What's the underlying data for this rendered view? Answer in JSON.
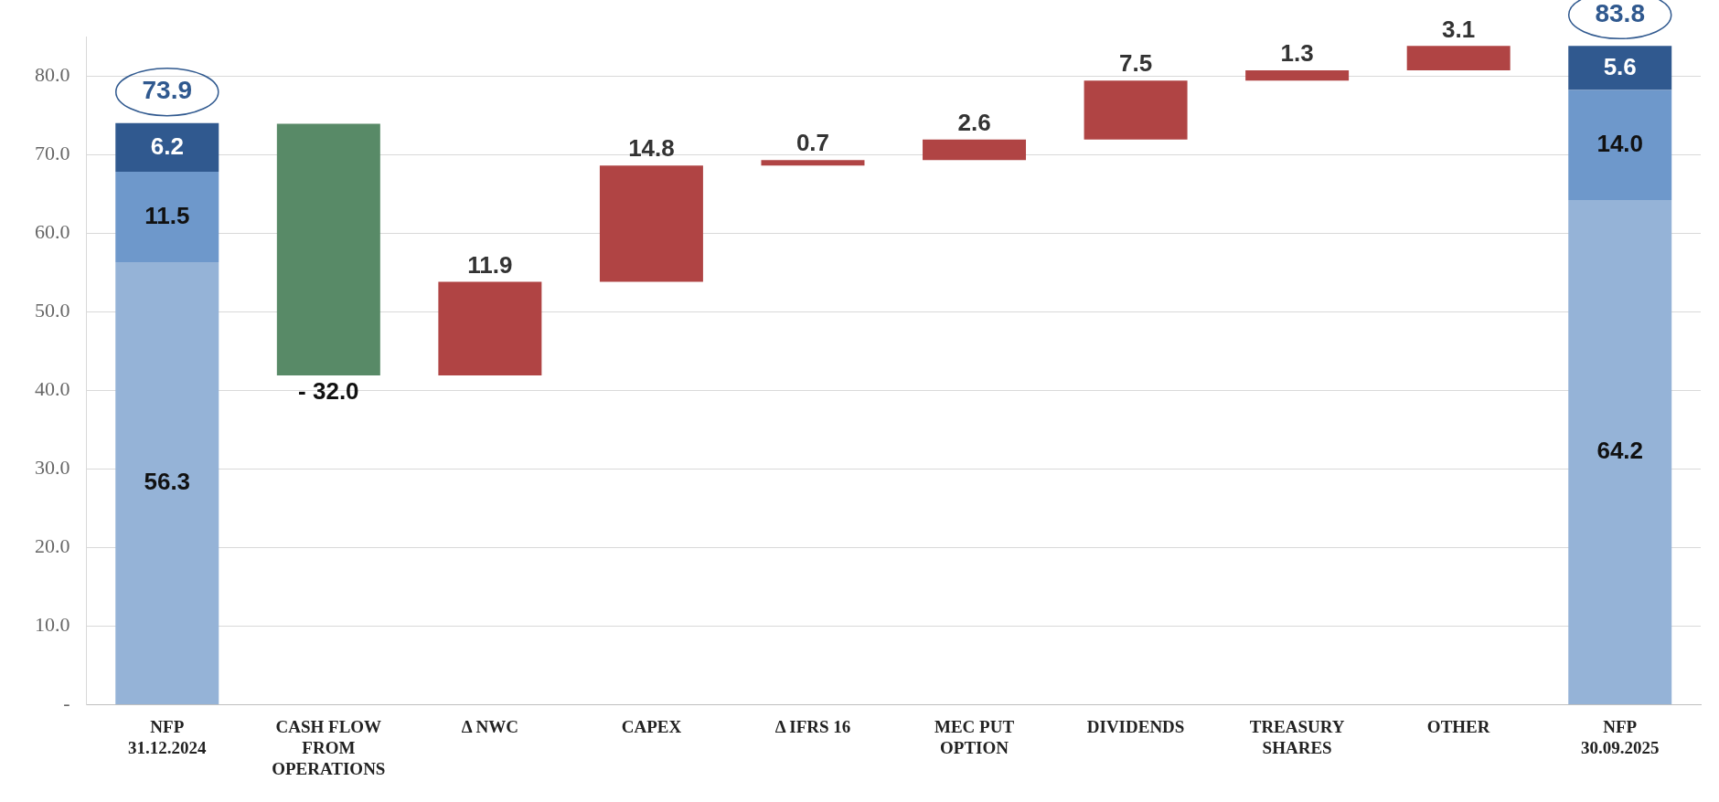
{
  "chart_data": {
    "type": "bar",
    "stacked": true,
    "categories": [
      "NFP 31.12.2024",
      "CASH FLOW FROM OPERATIONS",
      "Δ NWC",
      "CAPEX",
      "Δ IFRS 16",
      "MEC PUT OPTION",
      "DIVIDENDS",
      "TREASURY SHARES",
      "OTHER",
      "NFP 30.09.2025"
    ],
    "series": [
      {
        "color": "#95b3d7",
        "values": [
          56.3,
          null,
          null,
          null,
          null,
          null,
          null,
          null,
          null,
          64.2
        ],
        "value_labels": [
          "56.3",
          null,
          null,
          null,
          null,
          null,
          null,
          null,
          null,
          "64.2"
        ]
      },
      {
        "color": "#6e98cb",
        "values": [
          11.5,
          null,
          null,
          null,
          null,
          null,
          null,
          null,
          null,
          14.0
        ],
        "value_labels": [
          "11.5",
          null,
          null,
          null,
          null,
          null,
          null,
          null,
          null,
          "14.0"
        ]
      },
      {
        "color": "#30598f",
        "values": [
          6.2,
          null,
          null,
          null,
          null,
          null,
          null,
          null,
          null,
          5.6
        ],
        "value_labels": [
          "6.2",
          null,
          null,
          null,
          null,
          null,
          null,
          null,
          null,
          "5.6"
        ]
      },
      {
        "color": "#588a67",
        "values": [
          null,
          -32.0,
          null,
          null,
          null,
          null,
          null,
          null,
          null,
          null
        ],
        "base": [
          null,
          73.9,
          null,
          null,
          null,
          null,
          null,
          null,
          null,
          null
        ],
        "value_labels": [
          null,
          "- 32.0",
          null,
          null,
          null,
          null,
          null,
          null,
          null,
          null
        ]
      },
      {
        "color": "#b04444",
        "values": [
          null,
          null,
          11.9,
          14.8,
          0.7,
          2.6,
          7.5,
          1.3,
          3.1,
          null
        ],
        "base": [
          null,
          null,
          41.9,
          53.8,
          68.6,
          69.3,
          71.9,
          79.4,
          80.7,
          null
        ],
        "value_labels": [
          null,
          null,
          "11.9",
          "14.8",
          "0.7",
          "2.6",
          "7.5",
          "1.3",
          "3.1",
          null
        ]
      }
    ],
    "totals": [
      "73.9",
      null,
      null,
      null,
      null,
      null,
      null,
      null,
      null,
      "83.8"
    ],
    "ylim": [
      0,
      85
    ],
    "yticks": [
      {
        "value": 0,
        "label": "-"
      },
      {
        "value": 10,
        "label": "10.0"
      },
      {
        "value": 20,
        "label": "20.0"
      },
      {
        "value": 30,
        "label": "30.0"
      },
      {
        "value": 40,
        "label": "40.0"
      },
      {
        "value": 50,
        "label": "50.0"
      },
      {
        "value": 60,
        "label": "60.0"
      },
      {
        "value": 70,
        "label": "70.0"
      },
      {
        "value": 80,
        "label": "80.0"
      }
    ],
    "grid": "y"
  }
}
